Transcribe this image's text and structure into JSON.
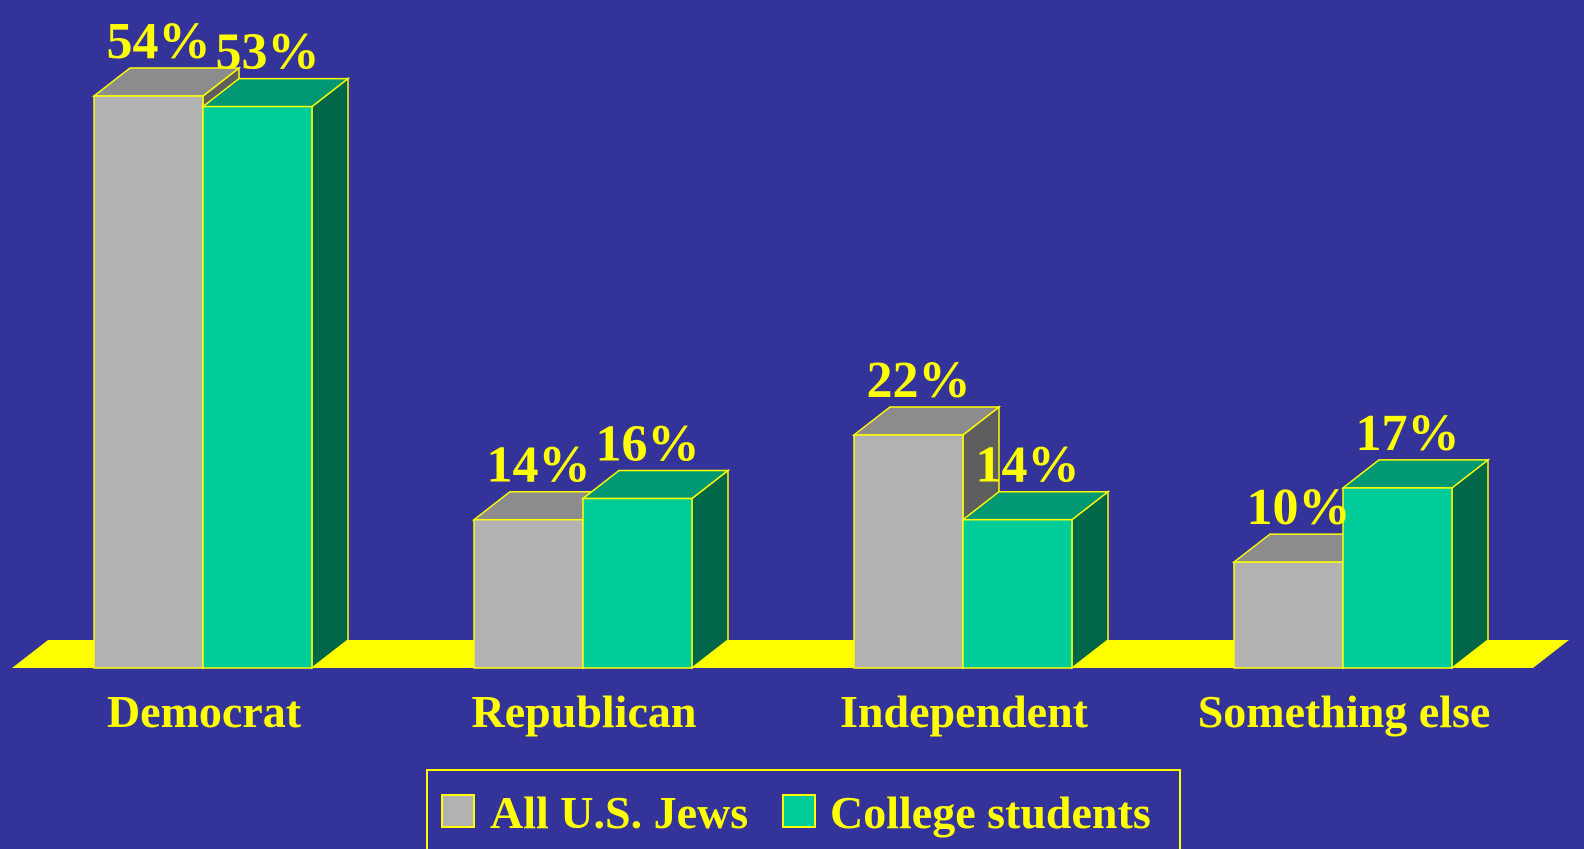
{
  "colors": {
    "background": "#333399",
    "floor": "#ffff00",
    "outline": "#ffff00",
    "text": "#ffff00"
  },
  "chart_data": {
    "type": "bar",
    "style": "3d-clustered",
    "categories": [
      "Democrat",
      "Republican",
      "Independent",
      "Something else"
    ],
    "series": [
      {
        "name": "All U.S. Jews",
        "values": [
          54,
          14,
          22,
          10
        ],
        "colors": {
          "front": "#b2b2b2",
          "top": "#8c8c8c",
          "side": "#5e5e5e"
        }
      },
      {
        "name": "College students",
        "values": [
          53,
          16,
          14,
          17
        ],
        "colors": {
          "front": "#00cc99",
          "top": "#009773",
          "side": "#006648"
        }
      }
    ],
    "data_labels": [
      [
        "54%",
        "14%",
        "22%",
        "10%"
      ],
      [
        "53%",
        "16%",
        "14%",
        "17%"
      ]
    ],
    "value_format": "percent",
    "ylim": [
      0,
      54
    ],
    "grid": false,
    "legend": "bottom-center",
    "title": "",
    "xlabel": "",
    "ylabel": ""
  }
}
